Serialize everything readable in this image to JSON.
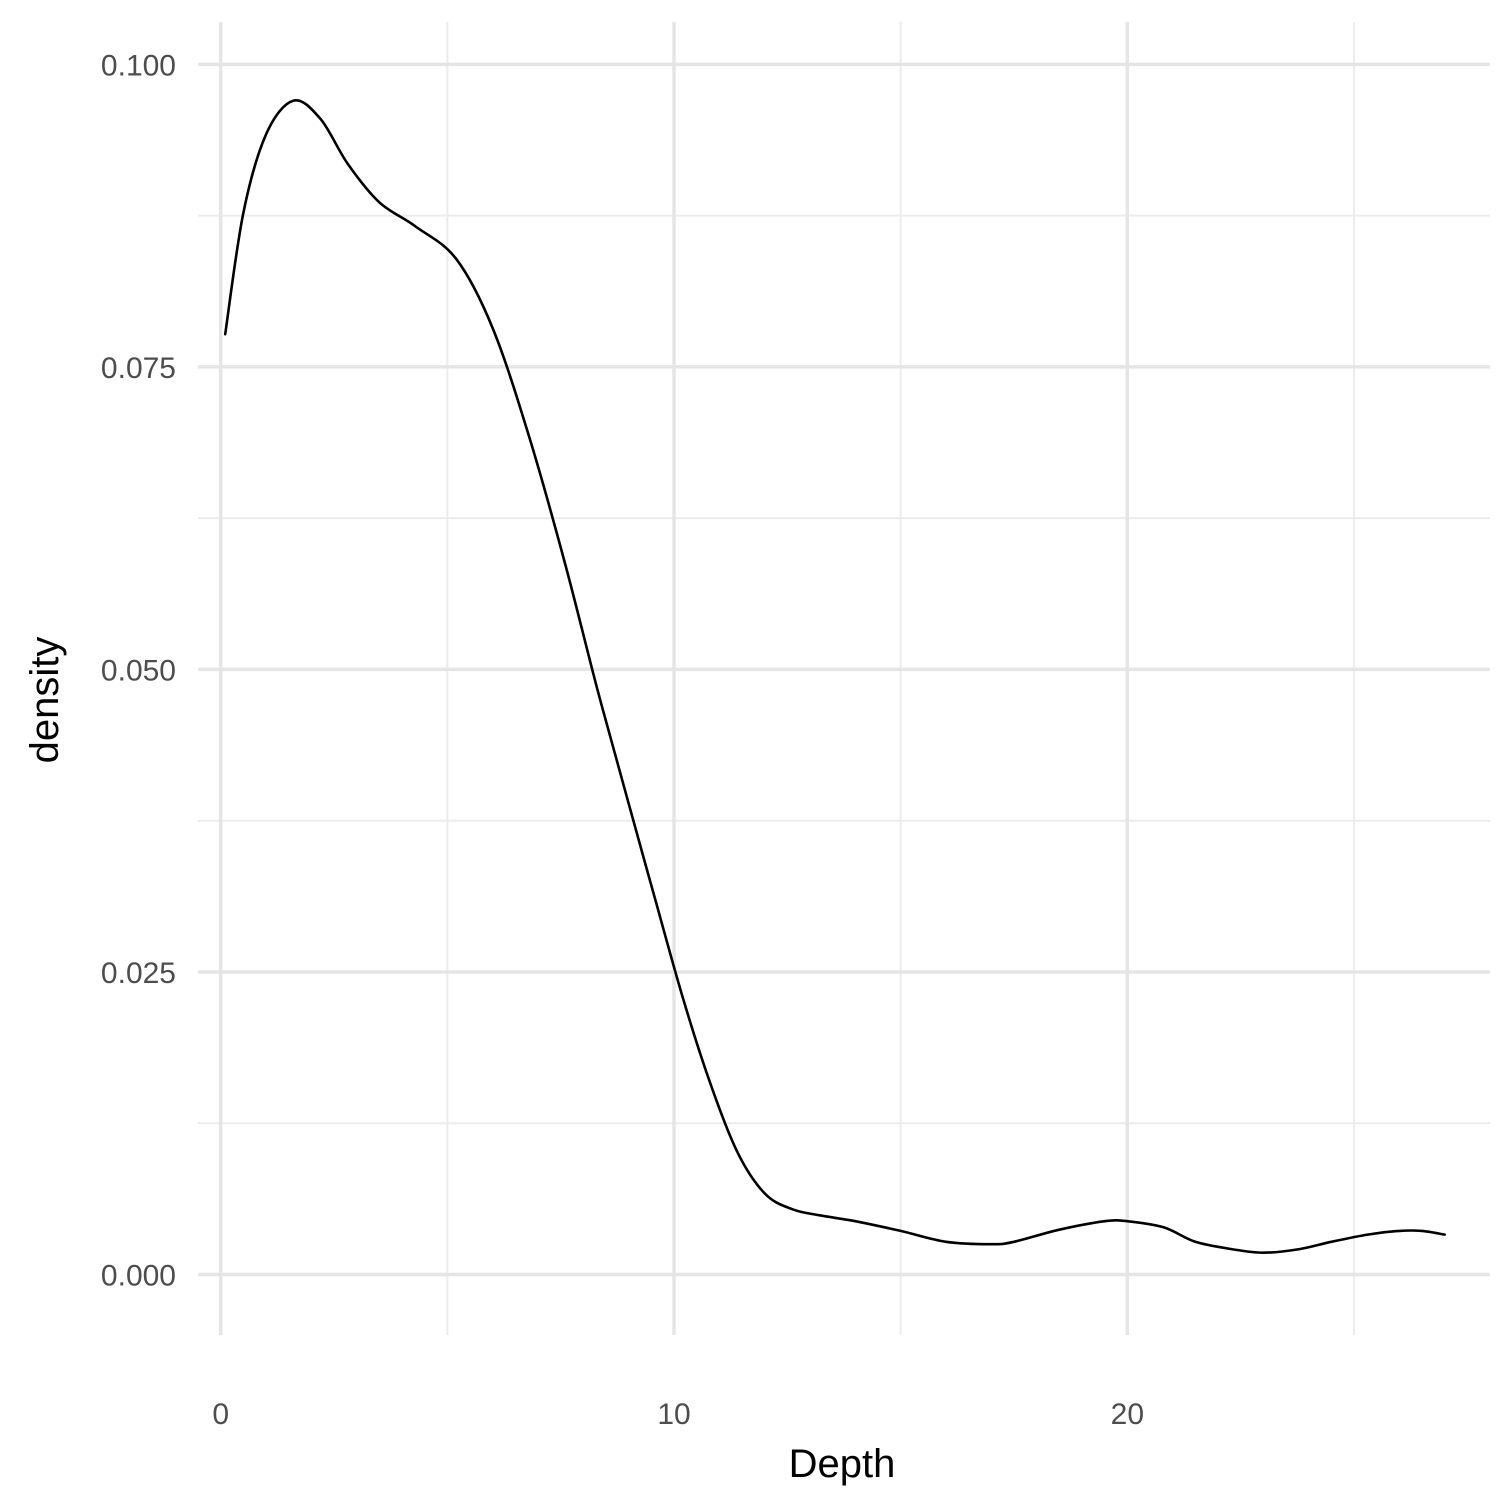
{
  "chart_data": {
    "type": "line",
    "xlabel": "Depth",
    "ylabel": "density",
    "xlim": [
      -0.5,
      28.0
    ],
    "ylim": [
      -0.005,
      0.1035
    ],
    "x_major_ticks": [
      0,
      10,
      20
    ],
    "x_minor_ticks": [
      5,
      15,
      25
    ],
    "y_major_ticks": [
      0.0,
      0.025,
      0.05,
      0.075,
      0.1
    ],
    "y_minor_ticks": [
      0.0125,
      0.0375,
      0.0625,
      0.0875
    ],
    "x_tick_labels": [
      "0",
      "10",
      "20"
    ],
    "y_tick_labels": [
      "0.000",
      "0.025",
      "0.050",
      "0.075",
      "0.100"
    ],
    "grid": true,
    "series": [
      {
        "x": [
          0.1,
          0.5,
          1.0,
          1.6,
          2.2,
          2.8,
          3.5,
          4.3,
          5.2,
          6.0,
          6.8,
          7.6,
          8.3,
          9.0,
          9.6,
          10.2,
          10.8,
          11.4,
          12.0,
          12.6,
          13.2,
          14.0,
          15.0,
          16.0,
          17.0,
          17.5,
          18.5,
          19.5,
          20.0,
          20.8,
          21.5,
          22.3,
          23.0,
          23.8,
          24.5,
          25.3,
          26.0,
          26.5,
          27.0
        ],
        "y": [
          0.0777,
          0.0877,
          0.0942,
          0.097,
          0.0955,
          0.0918,
          0.0886,
          0.0866,
          0.0839,
          0.0782,
          0.0693,
          0.0587,
          0.0485,
          0.0389,
          0.0308,
          0.0228,
          0.0158,
          0.0101,
          0.0067,
          0.0054,
          0.0049,
          0.0044,
          0.0036,
          0.0027,
          0.0025,
          0.0027,
          0.0037,
          0.0044,
          0.0044,
          0.0039,
          0.0027,
          0.0021,
          0.0018,
          0.0021,
          0.0027,
          0.0033,
          0.0036,
          0.0036,
          0.0033
        ]
      }
    ]
  }
}
